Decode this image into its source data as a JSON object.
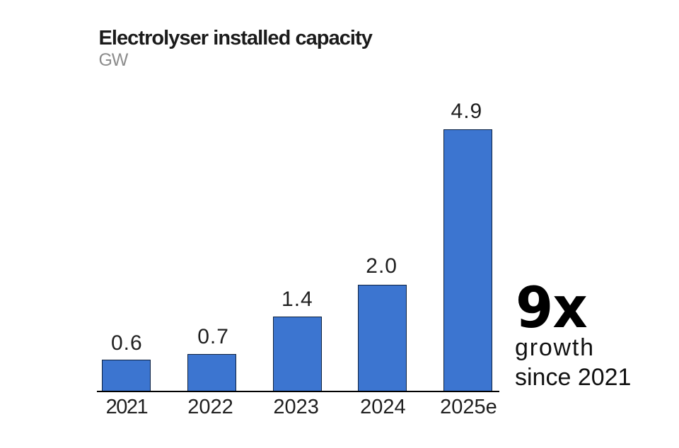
{
  "header": {
    "title": "Electrolyser installed capacity",
    "unit": "GW"
  },
  "chart_data": {
    "type": "bar",
    "title": "Electrolyser installed capacity",
    "ylabel": "GW",
    "categories": [
      "2021",
      "2022",
      "2023",
      "2024",
      "2025e"
    ],
    "values": [
      0.6,
      0.7,
      1.4,
      2.0,
      4.9
    ],
    "value_labels": [
      "0.6",
      "0.7",
      "1.4",
      "2.0",
      "4.9"
    ],
    "ylim": [
      0,
      4.9
    ],
    "grid": false,
    "legend": false,
    "bar_color": "#3c75d0",
    "bar_border_color": "#0e2240",
    "axis_color": "#000000"
  },
  "callout": {
    "multiplier": "9x",
    "caption_line1": "growth",
    "caption_line2": "since 2021"
  }
}
